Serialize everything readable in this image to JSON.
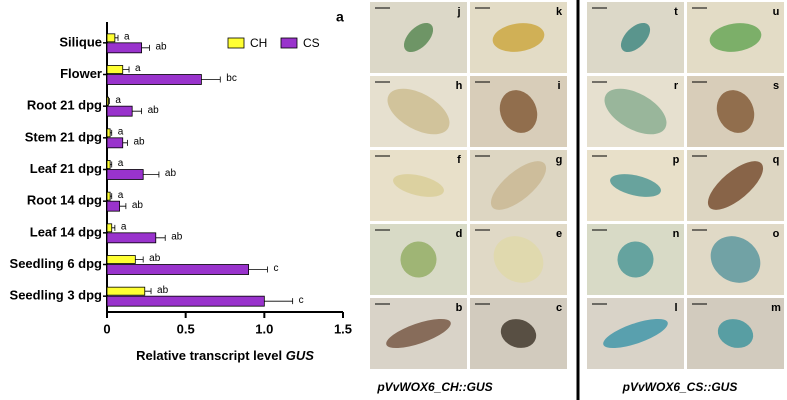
{
  "chart_data": {
    "type": "bar",
    "orientation": "horizontal",
    "panel_label": "a",
    "categories": [
      "Silique",
      "Flower",
      "Root 21 dpg",
      "Stem 21 dpg",
      "Leaf 21 dpg",
      "Root 14 dpg",
      "Leaf 14 dpg",
      "Seedling 6 dpg",
      "Seedling 3 dpg"
    ],
    "series": [
      {
        "name": "CH",
        "color": "#ffff33",
        "values": [
          0.05,
          0.1,
          0.01,
          0.02,
          0.02,
          0.02,
          0.03,
          0.18,
          0.24
        ],
        "errors": [
          0.02,
          0.04,
          0.005,
          0.01,
          0.01,
          0.01,
          0.02,
          0.05,
          0.04
        ],
        "letters": [
          "a",
          "a",
          "a",
          "a",
          "a",
          "a",
          "a",
          "ab",
          "ab"
        ]
      },
      {
        "name": "CS",
        "color": "#9933cc",
        "values": [
          0.22,
          0.6,
          0.16,
          0.1,
          0.23,
          0.08,
          0.31,
          0.9,
          1.0
        ],
        "errors": [
          0.05,
          0.12,
          0.06,
          0.03,
          0.1,
          0.04,
          0.06,
          0.12,
          0.18
        ],
        "letters": [
          "ab",
          "bc",
          "ab",
          "ab",
          "ab",
          "ab",
          "ab",
          "c",
          "c"
        ]
      }
    ],
    "xlim": [
      0,
      1.5
    ],
    "xticks": [
      0,
      0.5,
      {
        "value": 1,
        "label": "1.0"
      },
      1.5
    ],
    "xlabel": "Relative transcript level",
    "xlabel_gene": "GUS"
  },
  "panels": {
    "ch": {
      "caption": "pVvWOX6_CH::GUS",
      "labels": [
        "j",
        "k",
        "h",
        "i",
        "f",
        "g",
        "d",
        "e",
        "b",
        "c"
      ]
    },
    "cs": {
      "caption": "pVvWOX6_CS::GUS",
      "labels": [
        "t",
        "u",
        "r",
        "s",
        "p",
        "q",
        "n",
        "o",
        "l",
        "m"
      ]
    }
  }
}
